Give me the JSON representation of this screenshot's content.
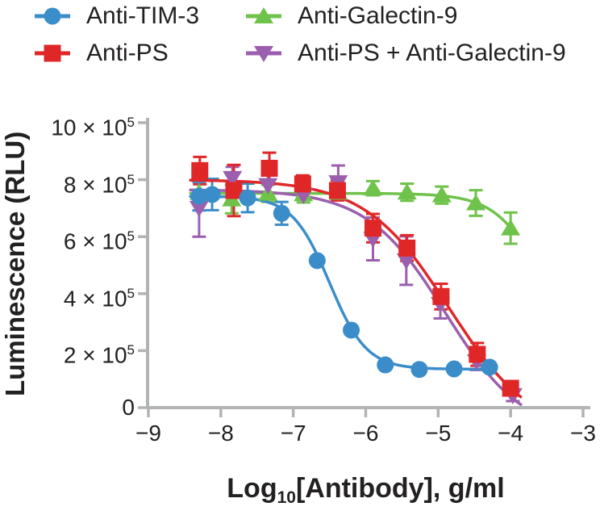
{
  "chart_data": {
    "type": "scatter",
    "subtype": "dose-response-curves-with-error-bars",
    "title": "",
    "ylabel": "Luminescence (RLU)",
    "xlabel_parts": {
      "pre": "Log",
      "sub": "10",
      "post": "[Antibody], g/ml"
    },
    "y_unit_note": "y values in 1e5 RLU",
    "x_axis": {
      "min": -9,
      "max": -3,
      "ticks": [
        {
          "label": "−9",
          "value": -9
        },
        {
          "label": "−8",
          "value": -8
        },
        {
          "label": "−7",
          "value": -7
        },
        {
          "label": "−6",
          "value": -6
        },
        {
          "label": "−5",
          "value": -5
        },
        {
          "label": "−4",
          "value": -4
        },
        {
          "label": "−3",
          "value": -3
        }
      ]
    },
    "y_axis": {
      "min": 0,
      "max": 10,
      "ticks": [
        {
          "label": "10 × 10",
          "sup": "5",
          "value": 10
        },
        {
          "label": "8 × 10",
          "sup": "5",
          "value": 8
        },
        {
          "label": "6 × 10",
          "sup": "5",
          "value": 6
        },
        {
          "label": "4 × 10",
          "sup": "5",
          "value": 4
        },
        {
          "label": "2 × 10",
          "sup": "5",
          "value": 2
        },
        {
          "label": "0",
          "sup": "",
          "value": 0
        }
      ]
    },
    "colors": {
      "axis": "#b1b3b5",
      "text": "#232020",
      "background": "#ffffff"
    },
    "legend_position": "top",
    "grid": false,
    "series": [
      {
        "id": "anti-tim-3",
        "label": "Anti-TIM-3",
        "color": "#3b8dca",
        "marker": "circle",
        "x": [
          -8.3,
          -8.12,
          -7.63,
          -7.16,
          -6.67,
          -6.2,
          -5.73,
          -5.26,
          -4.78,
          -4.29
        ],
        "y": [
          7.42,
          7.48,
          7.36,
          6.82,
          5.16,
          2.72,
          1.5,
          1.34,
          1.36,
          1.42
        ],
        "err": [
          0.5,
          0.55,
          0.5,
          0.4,
          0,
          0,
          0,
          0,
          0,
          0
        ],
        "fit": {
          "top": 7.42,
          "bottom": 1.35,
          "ec50": -6.5,
          "hill": 1.7,
          "x_start": -8.42,
          "x_end": -4.24
        }
      },
      {
        "id": "anti-ps",
        "label": "Anti-PS",
        "color": "#e02728",
        "marker": "square",
        "x": [
          -8.29,
          -7.82,
          -7.33,
          -6.87,
          -6.39,
          -5.9,
          -5.43,
          -4.96,
          -4.46,
          -4.0
        ],
        "y": [
          8.32,
          7.62,
          8.4,
          7.85,
          7.62,
          6.3,
          5.6,
          3.9,
          1.87,
          0.68
        ],
        "err": [
          0.48,
          0.9,
          0.55,
          0.3,
          0.35,
          0.5,
          0.45,
          0.45,
          0.4,
          0.25
        ],
        "fit": {
          "top": 8.0,
          "bottom": -1.0,
          "ec50": -4.85,
          "hill": 0.75,
          "x_start": -8.42,
          "x_end": -3.85
        }
      },
      {
        "id": "anti-galectin-9",
        "label": "Anti-Galectin-9",
        "color": "#6fc24a",
        "marker": "triangle-up",
        "x": [
          -8.3,
          -7.85,
          -7.35,
          -6.86,
          -6.38,
          -5.9,
          -5.43,
          -4.95,
          -4.48,
          -4.0
        ],
        "y": [
          7.55,
          7.32,
          7.52,
          7.5,
          7.55,
          7.7,
          7.56,
          7.46,
          7.18,
          6.3
        ],
        "err": [
          0,
          0.5,
          0.3,
          0.3,
          0,
          0.25,
          0.3,
          0.3,
          0.45,
          0.55
        ],
        "fit": {
          "top": 7.52,
          "bottom": 0.0,
          "ec50": -3.45,
          "hill": 1.3,
          "x_start": -8.42,
          "x_end": -3.99
        }
      },
      {
        "id": "anti-ps-anti-galectin-9",
        "label": "Anti-PS + Anti-Galectin-9",
        "color": "#9c5fae",
        "marker": "triangle-down",
        "x": [
          -8.3,
          -7.84,
          -7.35,
          -6.86,
          -6.38,
          -5.9,
          -5.44,
          -4.97,
          -4.47,
          -3.97
        ],
        "y": [
          7.0,
          8.05,
          7.8,
          7.45,
          7.9,
          5.92,
          5.16,
          3.63,
          1.62,
          0.43
        ],
        "err": [
          1.0,
          0.4,
          0.4,
          0,
          0.6,
          0.75,
          0.85,
          0.5,
          0.3,
          0.2
        ],
        "fit": {
          "top": 7.65,
          "bottom": -1.0,
          "ec50": -4.9,
          "hill": 0.8,
          "x_start": -8.42,
          "x_end": -3.85
        }
      }
    ]
  }
}
